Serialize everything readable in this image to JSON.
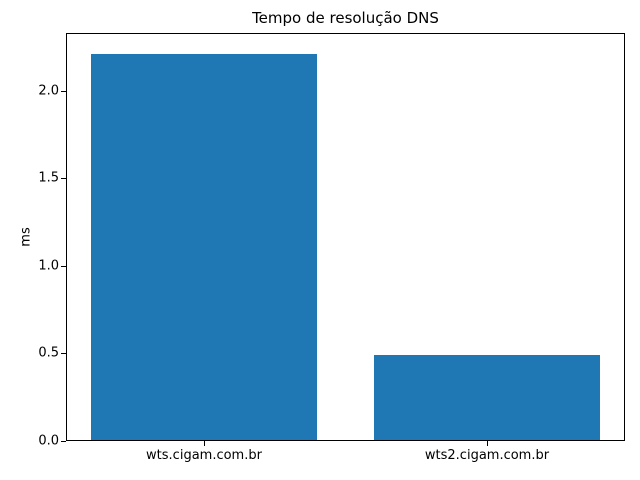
{
  "chart_data": {
    "type": "bar",
    "title": "Tempo de resolução DNS",
    "xlabel": "",
    "ylabel": "ms",
    "categories": [
      "wts.cigam.com.br",
      "wts2.cigam.com.br"
    ],
    "values": [
      2.21,
      0.49
    ],
    "ylim": [
      0,
      2.33
    ],
    "yticks": [
      0,
      0.5,
      1,
      1.5,
      2
    ],
    "ytick_labels": [
      "0.0",
      "0.5",
      "1.0",
      "1.5",
      "2.0"
    ],
    "bar_color": "#1f77b4",
    "background_color": "#ffffff",
    "axis_color": "#000000",
    "text_color": "#000000",
    "grid": false,
    "legend_position": "none"
  }
}
